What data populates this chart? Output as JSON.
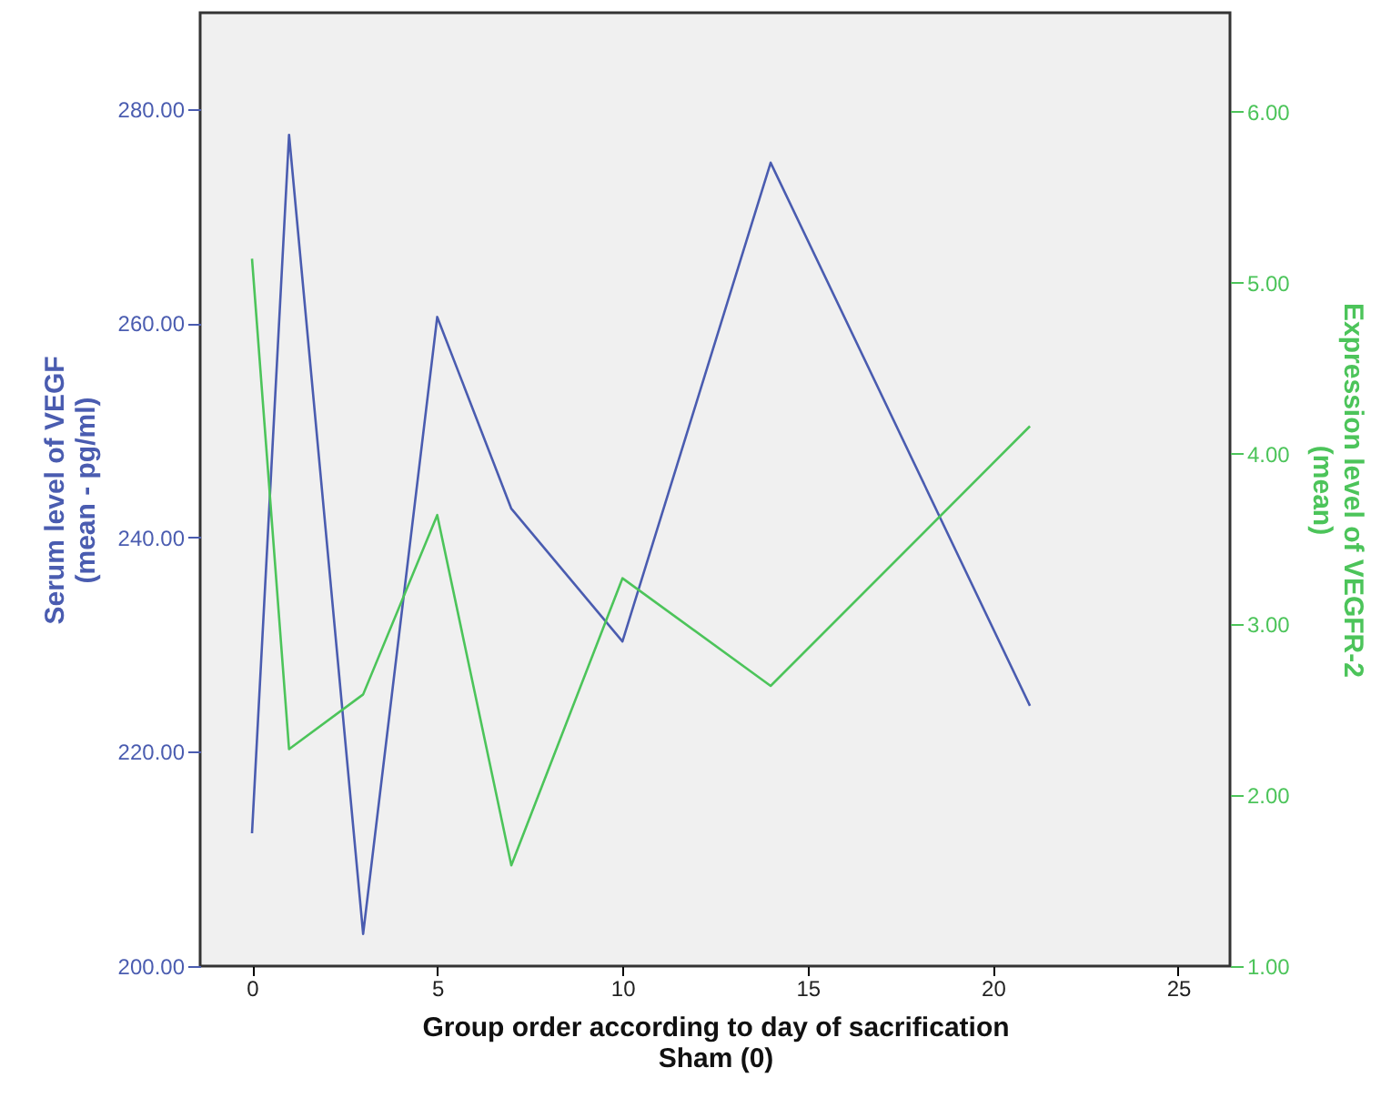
{
  "chart_data": {
    "type": "line",
    "xlabel": "Group order according to day of sacrification\nSham (0)",
    "ylabel": "Serum level of VEGF\n(mean - pg/ml)",
    "y2label": "Expression level of VEGFR-2\n(mean)",
    "x": [
      0,
      1,
      3,
      5,
      7,
      10,
      14,
      21
    ],
    "series": [
      {
        "color": "#4a5cb0",
        "values": [
          212.4,
          277.6,
          203.0,
          260.6,
          242.7,
          230.3,
          275.0,
          224.3
        ]
      },
      {
        "color": "#4cc45a",
        "axis": "y2",
        "values": [
          5.14,
          2.27,
          2.59,
          3.64,
          1.59,
          3.27,
          2.64,
          4.16
        ]
      }
    ],
    "xlim": [
      -1.4,
      26.4
    ],
    "xticks": [
      0,
      5,
      10,
      15,
      20,
      25
    ],
    "ylim": [
      200,
      289
    ],
    "yticks": [
      {
        "value": 200,
        "label": "200.00"
      },
      {
        "value": 220,
        "label": "220.00"
      },
      {
        "value": 240,
        "label": "240.00"
      },
      {
        "value": 260,
        "label": "260.00"
      },
      {
        "value": 280,
        "label": "280.00"
      }
    ],
    "y2lim": [
      1,
      6.58
    ],
    "y2ticks": [
      {
        "value": 1,
        "label": "1.00"
      },
      {
        "value": 2,
        "label": "2.00"
      },
      {
        "value": 3,
        "label": "3.00"
      },
      {
        "value": 4,
        "label": "4.00"
      },
      {
        "value": 5,
        "label": "5.00"
      },
      {
        "value": 6,
        "label": "6.00"
      }
    ],
    "grid": false,
    "marker": "none",
    "line_style": "solid"
  }
}
